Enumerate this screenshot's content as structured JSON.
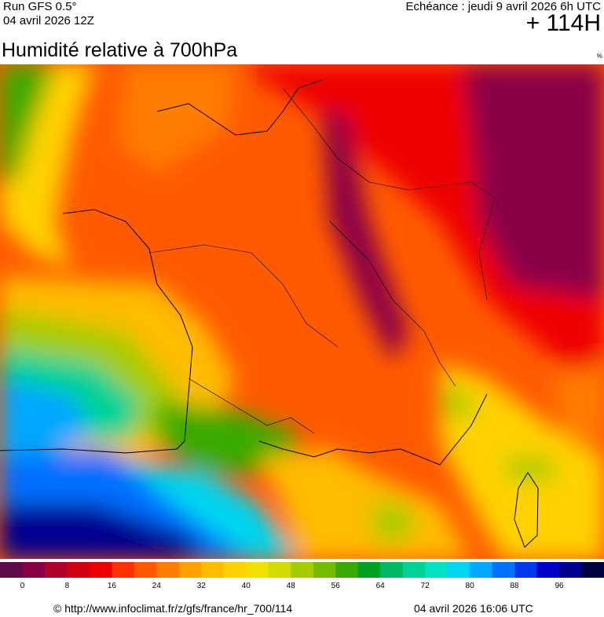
{
  "header": {
    "run": "Run GFS 0.5°",
    "run_date": "04 avril 2026 12Z",
    "echeance": "Echéance : jeudi 9 avril 2026 6h UTC",
    "lead": "+ 114H"
  },
  "title": "Humidité relative à 700hPa",
  "unit": "%",
  "legend": {
    "colors": [
      "#5e0a4a",
      "#8a0046",
      "#b0002c",
      "#d00012",
      "#ee0000",
      "#ff3000",
      "#ff5a00",
      "#ff7d00",
      "#ffa000",
      "#ffbc00",
      "#ffd200",
      "#f2e000",
      "#d2dc00",
      "#a6cc00",
      "#74bc00",
      "#3aaa00",
      "#00a020",
      "#00b864",
      "#00d296",
      "#00e2c4",
      "#00d6f0",
      "#00a8ff",
      "#0070ff",
      "#0038f0",
      "#0000c8",
      "#000090",
      "#000040"
    ],
    "ticks": [
      0,
      8,
      16,
      24,
      32,
      40,
      48,
      56,
      64,
      72,
      80,
      88,
      96
    ]
  },
  "footer": {
    "url": "© http://www.infoclimat.fr/z/gfs/france/hr_700/114",
    "date": "04 avril 2026 16:06 UTC"
  }
}
